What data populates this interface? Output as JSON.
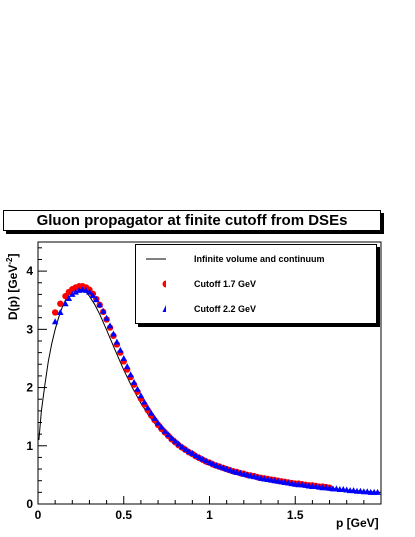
{
  "chart_data": {
    "type": "scatter",
    "title": "Gluon propagator at finite cutoff from DSEs",
    "xlabel": "p [GeV]",
    "ylabel": "D(p) [GeV",
    "ylabel_sup": "-2",
    "ylabel_close": "]",
    "xlim": [
      0,
      2.0
    ],
    "ylim": [
      0,
      4.5
    ],
    "xticks": [
      0,
      0.5,
      1,
      1.5
    ],
    "xtick_labels": [
      "0",
      "0.5",
      "1",
      "1.5"
    ],
    "yticks": [
      0,
      1,
      2,
      3,
      4
    ],
    "ytick_labels": [
      "0",
      "1",
      "2",
      "3",
      "4"
    ],
    "legend_position": "top-right",
    "series": [
      {
        "name": "Infinite volume and continuum",
        "style": "line",
        "color": "#000000",
        "x": [
          0.005,
          0.02,
          0.04,
          0.06,
          0.08,
          0.1,
          0.12,
          0.14,
          0.16,
          0.18,
          0.2,
          0.22,
          0.24,
          0.26,
          0.28,
          0.3,
          0.33,
          0.36,
          0.4,
          0.45,
          0.5,
          0.55,
          0.6,
          0.65,
          0.7,
          0.75,
          0.8,
          0.9,
          1.0,
          1.1,
          1.2,
          1.3,
          1.4,
          1.5,
          1.6,
          1.7,
          1.8,
          1.9,
          2.0
        ],
        "y": [
          1.1,
          1.6,
          2.05,
          2.45,
          2.75,
          3.0,
          3.2,
          3.37,
          3.5,
          3.6,
          3.66,
          3.69,
          3.7,
          3.68,
          3.64,
          3.57,
          3.43,
          3.26,
          2.99,
          2.64,
          2.3,
          2.0,
          1.73,
          1.5,
          1.31,
          1.15,
          1.02,
          0.82,
          0.68,
          0.57,
          0.49,
          0.43,
          0.38,
          0.34,
          0.3,
          0.27,
          0.24,
          0.22,
          0.2
        ]
      },
      {
        "name": "Cutoff 1.7 GeV",
        "style": "circle",
        "color": "#ff0000",
        "x": [
          0.1,
          0.13,
          0.16,
          0.18,
          0.2,
          0.22,
          0.24,
          0.26,
          0.28,
          0.3,
          0.32,
          0.34,
          0.36,
          0.38,
          0.4,
          0.42,
          0.44,
          0.46,
          0.48,
          0.5,
          0.52,
          0.54,
          0.56,
          0.58,
          0.6,
          0.62,
          0.64,
          0.66,
          0.68,
          0.7,
          0.72,
          0.74,
          0.76,
          0.78,
          0.8,
          0.82,
          0.84,
          0.86,
          0.88,
          0.9,
          0.92,
          0.94,
          0.96,
          0.98,
          1.0,
          1.02,
          1.04,
          1.06,
          1.08,
          1.1,
          1.12,
          1.14,
          1.16,
          1.18,
          1.2,
          1.22,
          1.24,
          1.26,
          1.28,
          1.3,
          1.32,
          1.34,
          1.36,
          1.38,
          1.4,
          1.42,
          1.44,
          1.46,
          1.48,
          1.5,
          1.52,
          1.54,
          1.56,
          1.58,
          1.6,
          1.62,
          1.64,
          1.66,
          1.68,
          1.7
        ],
        "y": [
          3.29,
          3.44,
          3.57,
          3.64,
          3.69,
          3.72,
          3.74,
          3.74,
          3.72,
          3.68,
          3.61,
          3.52,
          3.42,
          3.3,
          3.17,
          3.03,
          2.89,
          2.74,
          2.6,
          2.45,
          2.31,
          2.18,
          2.05,
          1.93,
          1.81,
          1.71,
          1.61,
          1.52,
          1.44,
          1.36,
          1.29,
          1.23,
          1.17,
          1.11,
          1.06,
          1.01,
          0.97,
          0.93,
          0.89,
          0.86,
          0.82,
          0.79,
          0.76,
          0.73,
          0.71,
          0.68,
          0.66,
          0.64,
          0.62,
          0.6,
          0.58,
          0.56,
          0.55,
          0.53,
          0.52,
          0.5,
          0.49,
          0.48,
          0.46,
          0.45,
          0.44,
          0.43,
          0.42,
          0.41,
          0.4,
          0.39,
          0.38,
          0.37,
          0.36,
          0.35,
          0.35,
          0.34,
          0.33,
          0.32,
          0.32,
          0.31,
          0.3,
          0.3,
          0.29,
          0.28
        ]
      },
      {
        "name": "Cutoff 2.2 GeV",
        "style": "triangle",
        "color": "#0000ff",
        "x": [
          0.1,
          0.13,
          0.16,
          0.18,
          0.2,
          0.22,
          0.24,
          0.26,
          0.28,
          0.3,
          0.32,
          0.34,
          0.36,
          0.38,
          0.4,
          0.42,
          0.44,
          0.46,
          0.48,
          0.5,
          0.52,
          0.54,
          0.56,
          0.58,
          0.6,
          0.62,
          0.64,
          0.66,
          0.68,
          0.7,
          0.72,
          0.74,
          0.76,
          0.78,
          0.8,
          0.82,
          0.84,
          0.86,
          0.88,
          0.9,
          0.92,
          0.94,
          0.96,
          0.98,
          1.0,
          1.02,
          1.04,
          1.06,
          1.08,
          1.1,
          1.12,
          1.14,
          1.16,
          1.18,
          1.2,
          1.22,
          1.24,
          1.26,
          1.28,
          1.3,
          1.32,
          1.34,
          1.36,
          1.38,
          1.4,
          1.42,
          1.44,
          1.46,
          1.48,
          1.5,
          1.52,
          1.54,
          1.56,
          1.58,
          1.6,
          1.62,
          1.64,
          1.66,
          1.68,
          1.7,
          1.72,
          1.74,
          1.76,
          1.78,
          1.8,
          1.82,
          1.84,
          1.86,
          1.88,
          1.9,
          1.92,
          1.94,
          1.96,
          1.98
        ],
        "y": [
          3.13,
          3.29,
          3.44,
          3.53,
          3.6,
          3.64,
          3.67,
          3.68,
          3.67,
          3.64,
          3.58,
          3.51,
          3.42,
          3.31,
          3.19,
          3.06,
          2.92,
          2.78,
          2.64,
          2.5,
          2.36,
          2.22,
          2.09,
          1.97,
          1.86,
          1.75,
          1.65,
          1.56,
          1.47,
          1.39,
          1.32,
          1.25,
          1.19,
          1.13,
          1.08,
          1.03,
          0.98,
          0.94,
          0.9,
          0.87,
          0.83,
          0.8,
          0.77,
          0.74,
          0.71,
          0.69,
          0.66,
          0.64,
          0.62,
          0.6,
          0.58,
          0.56,
          0.54,
          0.53,
          0.51,
          0.5,
          0.48,
          0.47,
          0.46,
          0.44,
          0.43,
          0.42,
          0.41,
          0.4,
          0.39,
          0.38,
          0.37,
          0.36,
          0.35,
          0.34,
          0.33,
          0.33,
          0.32,
          0.31,
          0.3,
          0.3,
          0.29,
          0.28,
          0.28,
          0.27,
          0.26,
          0.26,
          0.25,
          0.25,
          0.24,
          0.23,
          0.23,
          0.22,
          0.22,
          0.21,
          0.21,
          0.2,
          0.2,
          0.2
        ]
      }
    ]
  }
}
